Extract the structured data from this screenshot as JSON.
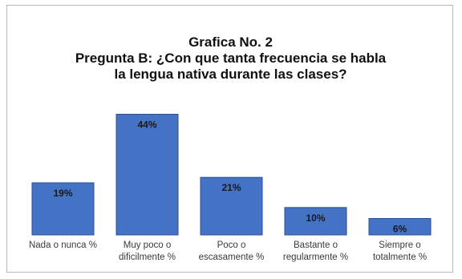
{
  "chart_data": {
    "type": "bar",
    "title": "Grafica No. 2",
    "subtitle_lines": [
      "Pregunta B: ¿Con que tanta frecuencia se habla",
      "la lengua nativa durante las clases?"
    ],
    "categories": [
      [
        "Nada o nunca %"
      ],
      [
        "Muy poco o",
        "dificilmente %"
      ],
      [
        "Poco o",
        "escasamente %"
      ],
      [
        "Bastante o",
        "regularmente %"
      ],
      [
        "Siempre o",
        "totalmente %"
      ]
    ],
    "values": [
      19,
      44,
      21,
      10,
      6
    ],
    "value_labels": [
      "19%",
      "44%",
      "21%",
      "10%",
      "6%"
    ],
    "ylim": [
      0,
      50
    ],
    "grid": false,
    "legend": "none",
    "colors": {
      "bar": "#4472c4",
      "bar_edge": "#2f528f"
    }
  }
}
